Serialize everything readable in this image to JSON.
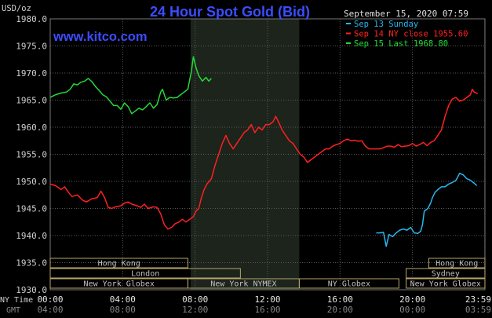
{
  "chart_data": {
    "type": "line",
    "title": "24 Hour Spot Gold (Bid)",
    "website": "www.kitco.com",
    "timestamp": "September 15, 2020 07:59",
    "ylabel": "USD/oz",
    "ylim": [
      1930,
      1980
    ],
    "yticks": [
      "1980.0",
      "1975.0",
      "1970.0",
      "1965.0",
      "1960.0",
      "1955.0",
      "1950.0",
      "1945.0",
      "1940.0",
      "1935.0",
      "1930.0"
    ],
    "x_axis": {
      "row1_label": "NY Time",
      "row2_label": "GMT",
      "ny_ticks": [
        "00:00",
        "04:00",
        "08:00",
        "12:00",
        "16:00",
        "20:00",
        "23:59"
      ],
      "gmt_ticks": [
        "04:00",
        "08:00",
        "12:00",
        "16:00",
        "20:00",
        "00:00",
        "03:59"
      ],
      "xlim": [
        0,
        24
      ]
    },
    "colors": {
      "background": "#000000",
      "grid": "#5a5a5a",
      "axis_text": "#cfcfcf",
      "title": "#3b4dff",
      "website": "#3b4dff",
      "highlight_band": "#1c241c",
      "session_box": "#b8a46a",
      "session_text": "#c2c2c2"
    },
    "highlight_hours": [
      7.75,
      13.75
    ],
    "legend": [
      {
        "label": "Sep 13 Sunday",
        "color": "#28b6ee"
      },
      {
        "label": "Sep 14 NY close 1955.60",
        "color": "#ff2020"
      },
      {
        "label": "Sep 15 Last 1968.80",
        "color": "#25d837"
      }
    ],
    "series": [
      {
        "name": "Sep 13 Sunday",
        "color": "#28b6ee",
        "points": [
          [
            18,
            1940.5
          ],
          [
            18.2,
            1940.5
          ],
          [
            18.4,
            1940.6
          ],
          [
            18.55,
            1938
          ],
          [
            18.7,
            1940.2
          ],
          [
            18.9,
            1939.8
          ],
          [
            19.1,
            1940.5
          ],
          [
            19.3,
            1941
          ],
          [
            19.5,
            1941.2
          ],
          [
            19.7,
            1941
          ],
          [
            19.9,
            1941.5
          ],
          [
            20.1,
            1940.5
          ],
          [
            20.3,
            1940.4
          ],
          [
            20.45,
            1940.8
          ],
          [
            20.55,
            1942
          ],
          [
            20.65,
            1944.5
          ],
          [
            20.85,
            1945
          ],
          [
            21.0,
            1946
          ],
          [
            21.1,
            1947
          ],
          [
            21.25,
            1948
          ],
          [
            21.4,
            1948.5
          ],
          [
            21.6,
            1949
          ],
          [
            21.8,
            1949
          ],
          [
            22.0,
            1949.5
          ],
          [
            22.2,
            1949.8
          ],
          [
            22.4,
            1950.2
          ],
          [
            22.6,
            1951.5
          ],
          [
            22.8,
            1951.2
          ],
          [
            23.0,
            1950.5
          ],
          [
            23.2,
            1950.2
          ],
          [
            23.4,
            1949.7
          ],
          [
            23.55,
            1949.2
          ]
        ]
      },
      {
        "name": "Sep 14 NY close 1955.60",
        "color": "#ff2020",
        "points": [
          [
            0,
            1949.5
          ],
          [
            0.3,
            1949.2
          ],
          [
            0.6,
            1948.5
          ],
          [
            0.8,
            1949
          ],
          [
            1.0,
            1948
          ],
          [
            1.2,
            1947.2
          ],
          [
            1.5,
            1947.5
          ],
          [
            1.8,
            1946.5
          ],
          [
            2.0,
            1946.2
          ],
          [
            2.3,
            1946.8
          ],
          [
            2.6,
            1947
          ],
          [
            2.8,
            1948.2
          ],
          [
            3.0,
            1947
          ],
          [
            3.2,
            1945.2
          ],
          [
            3.4,
            1945
          ],
          [
            3.6,
            1945.3
          ],
          [
            3.9,
            1945.5
          ],
          [
            4.1,
            1946
          ],
          [
            4.3,
            1946.2
          ],
          [
            4.5,
            1945.8
          ],
          [
            4.8,
            1945.5
          ],
          [
            5.0,
            1945.2
          ],
          [
            5.2,
            1945.8
          ],
          [
            5.4,
            1945
          ],
          [
            5.7,
            1945.3
          ],
          [
            5.9,
            1945.2
          ],
          [
            6.1,
            1944
          ],
          [
            6.3,
            1942
          ],
          [
            6.5,
            1941.2
          ],
          [
            6.7,
            1941.5
          ],
          [
            6.9,
            1942.2
          ],
          [
            7.1,
            1942.5
          ],
          [
            7.3,
            1943
          ],
          [
            7.5,
            1942.5
          ],
          [
            7.7,
            1943
          ],
          [
            7.9,
            1943.5
          ],
          [
            8.05,
            1944.5
          ],
          [
            8.2,
            1945
          ],
          [
            8.35,
            1947
          ],
          [
            8.5,
            1948.5
          ],
          [
            8.65,
            1949.5
          ],
          [
            8.9,
            1950.5
          ],
          [
            9.1,
            1953
          ],
          [
            9.3,
            1955
          ],
          [
            9.5,
            1957
          ],
          [
            9.7,
            1958.5
          ],
          [
            9.9,
            1957
          ],
          [
            10.1,
            1956
          ],
          [
            10.3,
            1957
          ],
          [
            10.5,
            1958
          ],
          [
            10.7,
            1959
          ],
          [
            10.9,
            1959.5
          ],
          [
            11.1,
            1960.5
          ],
          [
            11.3,
            1959
          ],
          [
            11.5,
            1960
          ],
          [
            11.7,
            1959.5
          ],
          [
            11.9,
            1960.5
          ],
          [
            12.1,
            1960.5
          ],
          [
            12.3,
            1961
          ],
          [
            12.45,
            1962
          ],
          [
            12.6,
            1961
          ],
          [
            12.8,
            1959.5
          ],
          [
            13.0,
            1958.5
          ],
          [
            13.2,
            1957.5
          ],
          [
            13.4,
            1957
          ],
          [
            13.6,
            1956
          ],
          [
            13.8,
            1955
          ],
          [
            14.0,
            1954.5
          ],
          [
            14.2,
            1953.5
          ],
          [
            14.4,
            1954
          ],
          [
            14.6,
            1954.5
          ],
          [
            14.8,
            1955
          ],
          [
            15.0,
            1955.5
          ],
          [
            15.2,
            1956
          ],
          [
            15.4,
            1956
          ],
          [
            15.6,
            1956.5
          ],
          [
            15.8,
            1956.8
          ],
          [
            16.0,
            1957
          ],
          [
            16.2,
            1957.5
          ],
          [
            16.4,
            1957.8
          ],
          [
            16.6,
            1957.5
          ],
          [
            16.8,
            1957.6
          ],
          [
            17.0,
            1957.4
          ],
          [
            17.2,
            1957.5
          ],
          [
            17.4,
            1956.5
          ],
          [
            17.6,
            1956
          ],
          [
            17.8,
            1956
          ],
          [
            18.0,
            1956
          ],
          [
            18.2,
            1956
          ],
          [
            18.4,
            1956.2
          ],
          [
            18.6,
            1956.5
          ],
          [
            18.8,
            1956.5
          ],
          [
            19.0,
            1956.3
          ],
          [
            19.2,
            1956.8
          ],
          [
            19.4,
            1956.4
          ],
          [
            19.6,
            1956.5
          ],
          [
            19.8,
            1956.6
          ],
          [
            20.0,
            1957
          ],
          [
            20.2,
            1956.5
          ],
          [
            20.4,
            1956.8
          ],
          [
            20.6,
            1957.2
          ],
          [
            20.8,
            1956.6
          ],
          [
            21.0,
            1957.2
          ],
          [
            21.2,
            1957.5
          ],
          [
            21.4,
            1958.5
          ],
          [
            21.6,
            1959.5
          ],
          [
            21.8,
            1962
          ],
          [
            22.0,
            1964
          ],
          [
            22.2,
            1965.2
          ],
          [
            22.4,
            1965.5
          ],
          [
            22.6,
            1964.8
          ],
          [
            22.8,
            1965
          ],
          [
            23.0,
            1965.5
          ],
          [
            23.2,
            1966
          ],
          [
            23.3,
            1967
          ],
          [
            23.4,
            1966.5
          ],
          [
            23.6,
            1966.2
          ]
        ]
      },
      {
        "name": "Sep 15 Last 1968.80",
        "color": "#25d837",
        "points": [
          [
            0,
            1965.5
          ],
          [
            0.3,
            1966
          ],
          [
            0.6,
            1966.3
          ],
          [
            0.9,
            1966.5
          ],
          [
            1.1,
            1967
          ],
          [
            1.3,
            1968
          ],
          [
            1.5,
            1967.8
          ],
          [
            1.7,
            1968.3
          ],
          [
            1.9,
            1968.5
          ],
          [
            2.1,
            1969
          ],
          [
            2.3,
            1968.4
          ],
          [
            2.5,
            1967.5
          ],
          [
            2.7,
            1966.8
          ],
          [
            2.9,
            1966
          ],
          [
            3.1,
            1965.6
          ],
          [
            3.3,
            1964.8
          ],
          [
            3.5,
            1964
          ],
          [
            3.7,
            1964
          ],
          [
            3.9,
            1963.3
          ],
          [
            4.1,
            1964.5
          ],
          [
            4.3,
            1963.8
          ],
          [
            4.5,
            1962.5
          ],
          [
            4.7,
            1963
          ],
          [
            4.9,
            1963.5
          ],
          [
            5.1,
            1963.2
          ],
          [
            5.3,
            1963.8
          ],
          [
            5.5,
            1964.5
          ],
          [
            5.7,
            1963.5
          ],
          [
            5.9,
            1964.2
          ],
          [
            6.1,
            1966.5
          ],
          [
            6.2,
            1967
          ],
          [
            6.4,
            1965
          ],
          [
            6.6,
            1965.5
          ],
          [
            6.8,
            1965.4
          ],
          [
            7.0,
            1965.5
          ],
          [
            7.2,
            1966
          ],
          [
            7.4,
            1966.5
          ],
          [
            7.6,
            1967
          ],
          [
            7.8,
            1970.5
          ],
          [
            7.9,
            1973
          ],
          [
            8.05,
            1971
          ],
          [
            8.2,
            1969.5
          ],
          [
            8.4,
            1968.5
          ],
          [
            8.6,
            1969.2
          ],
          [
            8.75,
            1968.5
          ],
          [
            8.9,
            1969
          ]
        ]
      }
    ],
    "sessions": [
      {
        "name": "Hong Kong",
        "start": 0.0,
        "end": 7.6,
        "row": 0
      },
      {
        "name": "Hong Kong",
        "start": 20.9,
        "end": 24.0,
        "row": 0
      },
      {
        "name": "London",
        "start": 0.0,
        "end": 10.5,
        "row": 1
      },
      {
        "name": "Sydney",
        "start": 19.65,
        "end": 24.0,
        "row": 1
      },
      {
        "name": "New York Globex",
        "start": 0.0,
        "end": 7.6,
        "row": 2
      },
      {
        "name": "New York NYMEX",
        "start": 7.6,
        "end": 13.75,
        "row": 2
      },
      {
        "name": "NY Globex",
        "start": 13.75,
        "end": 19.25,
        "row": 2
      },
      {
        "name": "New York Globex",
        "start": 19.65,
        "end": 24.0,
        "row": 2
      }
    ]
  }
}
